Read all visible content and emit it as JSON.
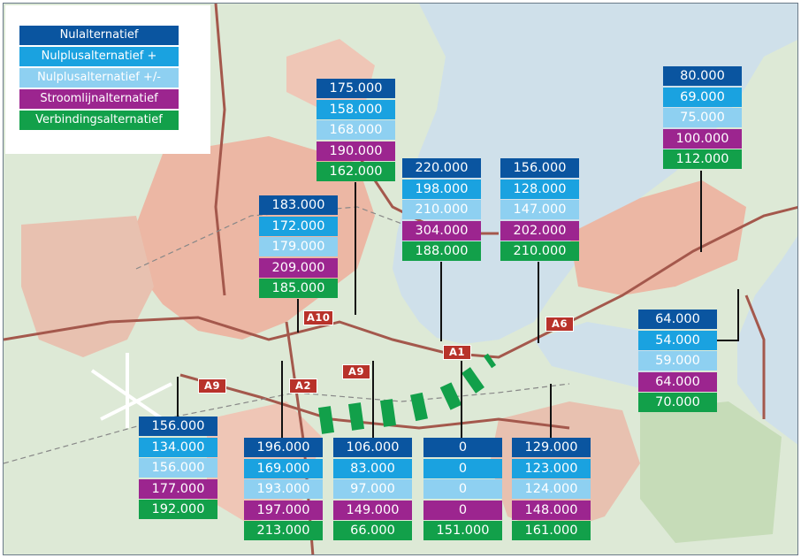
{
  "colors": {
    "nulalternatief": "#0a55a0",
    "nulplusalternatief_plus": "#1aa2e0",
    "nulplusalternatief_plusminus": "#8ed0f1",
    "stroomlijnalternatief": "#9c258f",
    "verbindingsalternatief": "#12a04a",
    "water": "#cfe0ea",
    "land": "#dde9d6",
    "urban": "#ecb7a4",
    "road_label": "#b8322a"
  },
  "legend": {
    "items": [
      {
        "label": "Nulalternatief",
        "color_key": "nulalternatief"
      },
      {
        "label": "Nulplusalternatief +",
        "color_key": "nulplusalternatief_plus"
      },
      {
        "label": "Nulplusalternatief +/-",
        "color_key": "nulplusalternatief_plusminus"
      },
      {
        "label": "Stroomlijnalternatief",
        "color_key": "stroomlijnalternatief"
      },
      {
        "label": "Verbindingsalternatief",
        "color_key": "verbindingsalternatief"
      }
    ]
  },
  "roads": [
    "A10",
    "A6",
    "A1",
    "A9",
    "A9",
    "A2"
  ],
  "locations": [
    {
      "values": [
        "175.000",
        "158.000",
        "168.000",
        "190.000",
        "162.000"
      ]
    },
    {
      "values": [
        "220.000",
        "198.000",
        "210.000",
        "304.000",
        "188.000"
      ]
    },
    {
      "values": [
        "156.000",
        "128.000",
        "147.000",
        "202.000",
        "210.000"
      ]
    },
    {
      "values": [
        "80.000",
        "69.000",
        "75.000",
        "100.000",
        "112.000"
      ]
    },
    {
      "values": [
        "183.000",
        "172.000",
        "179.000",
        "209.000",
        "185.000"
      ]
    },
    {
      "values": [
        "64.000",
        "54.000",
        "59.000",
        "64.000",
        "70.000"
      ]
    },
    {
      "values": [
        "156.000",
        "134.000",
        "156.000",
        "177.000",
        "192.000"
      ]
    },
    {
      "values": [
        "196.000",
        "169.000",
        "193.000",
        "197.000",
        "213.000"
      ]
    },
    {
      "values": [
        "106.000",
        "83.000",
        "97.000",
        "149.000",
        "66.000"
      ]
    },
    {
      "values": [
        "0",
        "0",
        "0",
        "0",
        "151.000"
      ]
    },
    {
      "values": [
        "129.000",
        "123.000",
        "124.000",
        "148.000",
        "161.000"
      ]
    }
  ]
}
